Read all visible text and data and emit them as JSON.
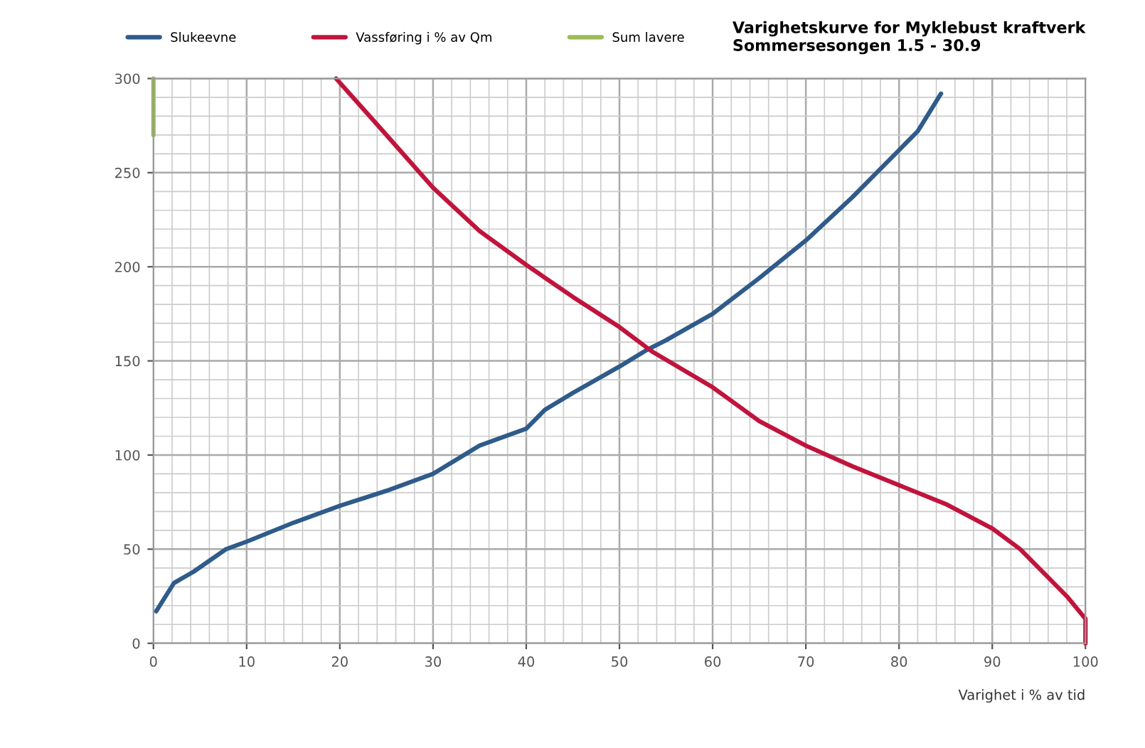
{
  "chart_data": {
    "type": "line",
    "title": "Varighetskurve for Myklebust kraftverk\nSommersesongen 1.5 - 30.9",
    "xlabel": "Varighet i % av tid",
    "series": [
      {
        "name": "Slukeevne",
        "color": "#2f5b8a",
        "x": [
          0.3,
          2.2,
          4.3,
          7.8,
          10,
          15,
          20,
          25,
          30,
          35,
          40,
          42,
          45,
          50,
          53,
          55,
          60,
          65,
          70,
          75,
          80,
          82,
          84.5
        ],
        "values": [
          17,
          32,
          38,
          50,
          54,
          64,
          73,
          81,
          90,
          105,
          114,
          124,
          133,
          147,
          156,
          161,
          175,
          194,
          214,
          237,
          262,
          272,
          292
        ]
      },
      {
        "name": "Vassføring i % av Qm",
        "color": "#c0143c",
        "x": [
          19.6,
          25,
          30,
          35,
          40,
          45,
          50,
          53.5,
          60,
          65,
          70,
          75,
          80,
          85,
          90,
          93,
          96,
          98,
          100,
          100
        ],
        "values": [
          300,
          270,
          242,
          219,
          201,
          184,
          168,
          155,
          136,
          118,
          105,
          94,
          84,
          74,
          61,
          50,
          35,
          25,
          13,
          0
        ]
      },
      {
        "name": "Sum lavere",
        "color": "#9bbb59",
        "x": [
          0,
          0
        ],
        "values": [
          300,
          270
        ]
      }
    ],
    "xlim": [
      0,
      100
    ],
    "ylim": [
      0,
      300
    ],
    "xticks": [
      0,
      10,
      20,
      30,
      40,
      50,
      60,
      70,
      80,
      90,
      100
    ],
    "yticks": [
      0,
      50,
      100,
      150,
      200,
      250,
      300
    ],
    "grid": true,
    "legend": "top",
    "marker": "none",
    "line_style": "solid"
  }
}
